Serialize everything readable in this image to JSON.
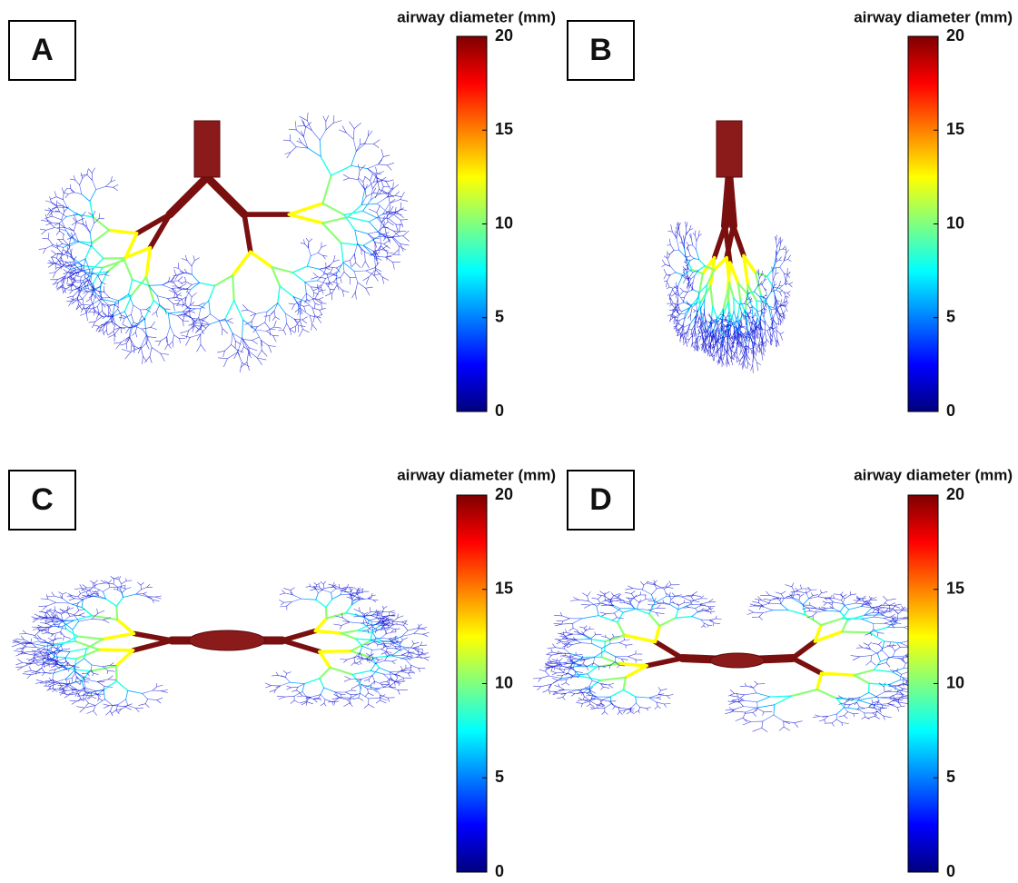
{
  "panels": [
    {
      "label": "A",
      "colorbar": {
        "title": "airway diameter (mm)",
        "lim": [
          0,
          20
        ],
        "ticks": [
          0,
          5,
          10,
          15,
          20
        ]
      }
    },
    {
      "label": "B",
      "colorbar": {
        "title": "airway diameter (mm)",
        "lim": [
          0,
          20
        ],
        "ticks": [
          0,
          5,
          10,
          15,
          20
        ]
      }
    },
    {
      "label": "C",
      "colorbar": {
        "title": "airway diameter (mm)",
        "lim": [
          0,
          20
        ],
        "ticks": [
          0,
          5,
          10,
          15,
          20
        ]
      }
    },
    {
      "label": "D",
      "colorbar": {
        "title": "airway diameter (mm)",
        "lim": [
          0,
          20
        ],
        "ticks": [
          0,
          5,
          10,
          15,
          20
        ]
      }
    }
  ]
}
